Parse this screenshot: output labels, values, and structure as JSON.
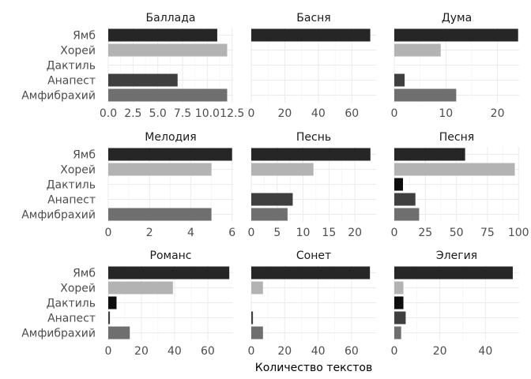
{
  "chart_data": {
    "type": "bar",
    "orientation": "horizontal",
    "facet_layout": "3x3",
    "xlabel": "Количество текстов",
    "ylabel": "",
    "grid": true,
    "legend": "none",
    "categories": [
      "Ямб",
      "Хорей",
      "Дактиль",
      "Анапест",
      "Амфибрахий"
    ],
    "colors": {
      "Ямб": "#262626",
      "Хорей": "#b3b3b3",
      "Дактиль": "#0d0d0d",
      "Анапест": "#3f3f3f",
      "Амфибрахий": "#6f6f6f"
    },
    "panels": [
      {
        "title": "Баллада",
        "values": [
          11,
          12,
          0,
          7,
          12
        ],
        "xlim": [
          0,
          12.6
        ],
        "ticks": [
          "0.0",
          "2.5",
          "5.0",
          "7.5",
          "10.0",
          "12.5"
        ]
      },
      {
        "title": "Басня",
        "values": [
          71,
          0,
          0,
          0,
          0
        ],
        "xlim": [
          0,
          74.5
        ],
        "ticks": [
          "0",
          "20",
          "40",
          "60"
        ]
      },
      {
        "title": "Дума",
        "values": [
          24,
          9,
          0,
          2,
          12
        ],
        "xlim": [
          0,
          24.2
        ],
        "ticks": [
          "0",
          "10",
          "20"
        ]
      },
      {
        "title": "Мелодия",
        "values": [
          6,
          5,
          0,
          0,
          5
        ],
        "xlim": [
          0,
          6.05
        ],
        "ticks": [
          "0",
          "2",
          "4",
          "6"
        ]
      },
      {
        "title": "Песнь",
        "values": [
          23,
          12,
          0,
          8,
          7
        ],
        "xlim": [
          0,
          24.1
        ],
        "ticks": [
          "0",
          "5",
          "10",
          "15",
          "20"
        ]
      },
      {
        "title": "Песня",
        "values": [
          57,
          97,
          7,
          17,
          20
        ],
        "xlim": [
          0,
          100.5
        ],
        "ticks": [
          "0",
          "25",
          "50",
          "75",
          "100"
        ]
      },
      {
        "title": "Романс",
        "values": [
          73,
          39,
          5,
          1,
          13
        ],
        "xlim": [
          0,
          75.3
        ],
        "ticks": [
          "0",
          "20",
          "40",
          "60"
        ]
      },
      {
        "title": "Сонет",
        "values": [
          71,
          7,
          0,
          1,
          7
        ],
        "xlim": [
          0,
          74.7
        ],
        "ticks": [
          "0",
          "20",
          "40",
          "60"
        ]
      },
      {
        "title": "Элегия",
        "values": [
          52,
          4,
          4,
          5,
          3
        ],
        "xlim": [
          0,
          54.8
        ],
        "ticks": [
          "0",
          "20",
          "40"
        ]
      }
    ]
  }
}
